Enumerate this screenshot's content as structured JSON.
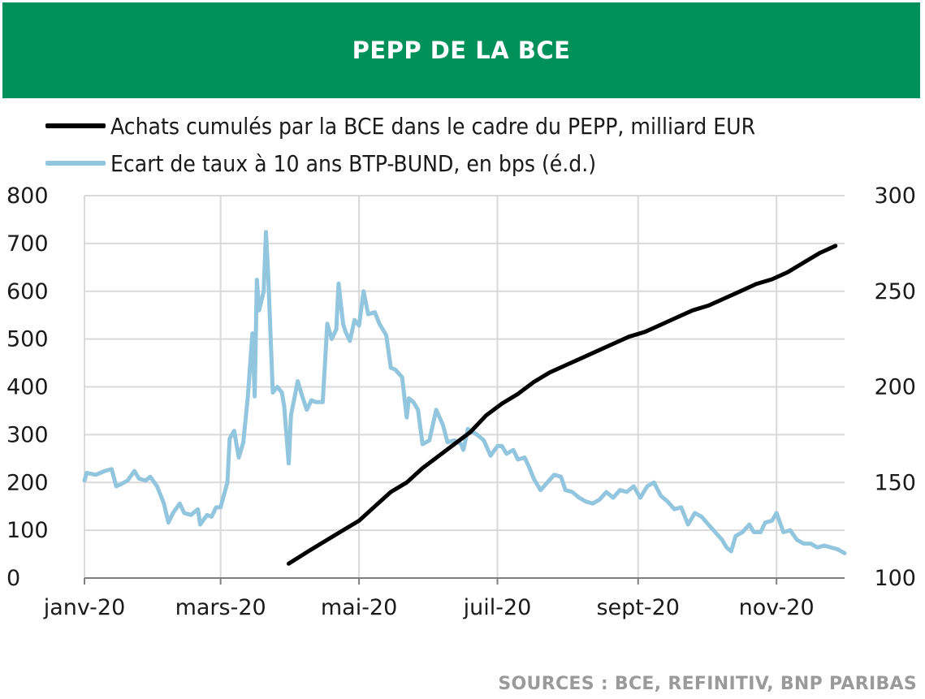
{
  "header": {
    "title": "PEPP DE LA BCE"
  },
  "source": "SOURCES : BCE, REFINITIV, BNP PARIBAS",
  "colors": {
    "header_bg": "#00915a",
    "series1": "#000000",
    "series2": "#92c5de",
    "grid": "#d9d9d9"
  },
  "chart_data": {
    "type": "line",
    "legend_position": "top-left",
    "grid": true,
    "x_range": [
      "2020-01-01",
      "2020-12-01"
    ],
    "x_ticks": [
      {
        "date": "2020-01-01",
        "label": "janv-20"
      },
      {
        "date": "2020-03-01",
        "label": "mars-20"
      },
      {
        "date": "2020-05-01",
        "label": "mai-20"
      },
      {
        "date": "2020-07-01",
        "label": "juil-20"
      },
      {
        "date": "2020-09-01",
        "label": "sept-20"
      },
      {
        "date": "2020-11-01",
        "label": "nov-20"
      }
    ],
    "y_left": {
      "range": [
        0,
        800
      ],
      "ticks": [
        "0",
        "100",
        "200",
        "300",
        "400",
        "500",
        "600",
        "700",
        "800"
      ]
    },
    "y_right": {
      "range": [
        100,
        300
      ],
      "ticks": [
        "100",
        "150",
        "200",
        "250",
        "300"
      ]
    },
    "series": [
      {
        "name": "Achats cumulés par la BCE dans le cadre du PEPP, milliard EUR",
        "axis": "left",
        "color": "#000000",
        "points": [
          [
            "2020-03-31",
            30
          ],
          [
            "2020-04-10",
            60
          ],
          [
            "2020-04-17",
            80
          ],
          [
            "2020-04-24",
            100
          ],
          [
            "2020-05-01",
            120
          ],
          [
            "2020-05-08",
            150
          ],
          [
            "2020-05-15",
            180
          ],
          [
            "2020-05-22",
            200
          ],
          [
            "2020-05-29",
            230
          ],
          [
            "2020-06-05",
            255
          ],
          [
            "2020-06-12",
            280
          ],
          [
            "2020-06-19",
            305
          ],
          [
            "2020-06-26",
            340
          ],
          [
            "2020-07-03",
            365
          ],
          [
            "2020-07-10",
            385
          ],
          [
            "2020-07-17",
            410
          ],
          [
            "2020-07-24",
            430
          ],
          [
            "2020-07-31",
            445
          ],
          [
            "2020-08-07",
            460
          ],
          [
            "2020-08-14",
            475
          ],
          [
            "2020-08-21",
            490
          ],
          [
            "2020-08-28",
            505
          ],
          [
            "2020-09-04",
            515
          ],
          [
            "2020-09-11",
            530
          ],
          [
            "2020-09-18",
            545
          ],
          [
            "2020-09-25",
            560
          ],
          [
            "2020-10-02",
            570
          ],
          [
            "2020-10-09",
            585
          ],
          [
            "2020-10-16",
            600
          ],
          [
            "2020-10-23",
            615
          ],
          [
            "2020-10-30",
            625
          ],
          [
            "2020-11-06",
            640
          ],
          [
            "2020-11-13",
            660
          ],
          [
            "2020-11-20",
            680
          ],
          [
            "2020-11-27",
            695
          ]
        ]
      },
      {
        "name": "Ecart de taux à 10 ans BTP-BUND, en bps (é.d.)",
        "axis": "right",
        "color": "#92c5de",
        "points": [
          [
            "2020-01-01",
            151
          ],
          [
            "2020-01-02",
            155
          ],
          [
            "2020-01-06",
            154
          ],
          [
            "2020-01-08",
            155
          ],
          [
            "2020-01-10",
            156
          ],
          [
            "2020-01-13",
            157
          ],
          [
            "2020-01-15",
            148
          ],
          [
            "2020-01-17",
            149
          ],
          [
            "2020-01-20",
            151
          ],
          [
            "2020-01-23",
            156
          ],
          [
            "2020-01-25",
            152
          ],
          [
            "2020-01-28",
            151
          ],
          [
            "2020-01-30",
            153
          ],
          [
            "2020-02-02",
            148
          ],
          [
            "2020-02-05",
            139
          ],
          [
            "2020-02-07",
            129
          ],
          [
            "2020-02-09",
            134
          ],
          [
            "2020-02-12",
            139
          ],
          [
            "2020-02-14",
            134
          ],
          [
            "2020-02-17",
            133
          ],
          [
            "2020-02-20",
            136
          ],
          [
            "2020-02-21",
            128
          ],
          [
            "2020-02-24",
            133
          ],
          [
            "2020-02-26",
            132
          ],
          [
            "2020-02-28",
            137
          ],
          [
            "2020-03-01",
            137
          ],
          [
            "2020-03-04",
            150
          ],
          [
            "2020-03-05",
            173
          ],
          [
            "2020-03-07",
            177
          ],
          [
            "2020-03-09",
            163
          ],
          [
            "2020-03-11",
            171
          ],
          [
            "2020-03-13",
            195
          ],
          [
            "2020-03-15",
            228
          ],
          [
            "2020-03-16",
            195
          ],
          [
            "2020-03-17",
            256
          ],
          [
            "2020-03-18",
            240
          ],
          [
            "2020-03-20",
            250
          ],
          [
            "2020-03-21",
            281
          ],
          [
            "2020-03-22",
            258
          ],
          [
            "2020-03-24",
            197
          ],
          [
            "2020-03-26",
            200
          ],
          [
            "2020-03-28",
            197
          ],
          [
            "2020-03-29",
            190
          ],
          [
            "2020-03-31",
            160
          ],
          [
            "2020-04-01",
            185
          ],
          [
            "2020-04-04",
            203
          ],
          [
            "2020-04-06",
            195
          ],
          [
            "2020-04-08",
            188
          ],
          [
            "2020-04-10",
            193
          ],
          [
            "2020-04-12",
            192
          ],
          [
            "2020-04-15",
            192
          ],
          [
            "2020-04-17",
            233
          ],
          [
            "2020-04-19",
            225
          ],
          [
            "2020-04-21",
            230
          ],
          [
            "2020-04-22",
            254
          ],
          [
            "2020-04-24",
            233
          ],
          [
            "2020-04-25",
            229
          ],
          [
            "2020-04-27",
            224
          ],
          [
            "2020-04-29",
            235
          ],
          [
            "2020-05-01",
            232
          ],
          [
            "2020-05-03",
            250
          ],
          [
            "2020-05-05",
            238
          ],
          [
            "2020-05-08",
            239
          ],
          [
            "2020-05-10",
            233
          ],
          [
            "2020-05-13",
            227
          ],
          [
            "2020-05-15",
            210
          ],
          [
            "2020-05-17",
            209
          ],
          [
            "2020-05-20",
            205
          ],
          [
            "2020-05-22",
            184
          ],
          [
            "2020-05-23",
            194
          ],
          [
            "2020-05-25",
            192
          ],
          [
            "2020-05-27",
            188
          ],
          [
            "2020-05-29",
            170
          ],
          [
            "2020-06-01",
            172
          ],
          [
            "2020-06-04",
            188
          ],
          [
            "2020-06-07",
            180
          ],
          [
            "2020-06-09",
            171
          ],
          [
            "2020-06-12",
            172
          ],
          [
            "2020-06-15",
            170
          ],
          [
            "2020-06-16",
            167
          ],
          [
            "2020-06-18",
            178
          ],
          [
            "2020-06-22",
            175
          ],
          [
            "2020-06-25",
            172
          ],
          [
            "2020-06-28",
            164
          ],
          [
            "2020-07-01",
            169
          ],
          [
            "2020-07-03",
            169
          ],
          [
            "2020-07-05",
            165
          ],
          [
            "2020-07-08",
            167
          ],
          [
            "2020-07-10",
            162
          ],
          [
            "2020-07-13",
            163
          ],
          [
            "2020-07-15",
            158
          ],
          [
            "2020-07-17",
            152
          ],
          [
            "2020-07-20",
            146
          ],
          [
            "2020-07-23",
            150
          ],
          [
            "2020-07-26",
            154
          ],
          [
            "2020-07-29",
            153
          ],
          [
            "2020-07-31",
            146
          ],
          [
            "2020-08-03",
            145
          ],
          [
            "2020-08-06",
            142
          ],
          [
            "2020-08-09",
            140
          ],
          [
            "2020-08-12",
            139
          ],
          [
            "2020-08-15",
            141
          ],
          [
            "2020-08-18",
            145
          ],
          [
            "2020-08-21",
            142
          ],
          [
            "2020-08-24",
            146
          ],
          [
            "2020-08-27",
            145
          ],
          [
            "2020-08-30",
            148
          ],
          [
            "2020-09-02",
            142
          ],
          [
            "2020-09-05",
            148
          ],
          [
            "2020-09-08",
            150
          ],
          [
            "2020-09-11",
            143
          ],
          [
            "2020-09-14",
            140
          ],
          [
            "2020-09-17",
            136
          ],
          [
            "2020-09-20",
            137
          ],
          [
            "2020-09-23",
            128
          ],
          [
            "2020-09-26",
            134
          ],
          [
            "2020-09-29",
            132
          ],
          [
            "2020-10-02",
            128
          ],
          [
            "2020-10-05",
            124
          ],
          [
            "2020-10-08",
            120
          ],
          [
            "2020-10-10",
            116
          ],
          [
            "2020-10-12",
            114
          ],
          [
            "2020-10-14",
            122
          ],
          [
            "2020-10-17",
            124
          ],
          [
            "2020-10-20",
            128
          ],
          [
            "2020-10-22",
            124
          ],
          [
            "2020-10-25",
            124
          ],
          [
            "2020-10-27",
            129
          ],
          [
            "2020-10-30",
            130
          ],
          [
            "2020-11-01",
            134
          ],
          [
            "2020-11-04",
            124
          ],
          [
            "2020-11-07",
            125
          ],
          [
            "2020-11-10",
            120
          ],
          [
            "2020-11-13",
            118
          ],
          [
            "2020-11-16",
            118
          ],
          [
            "2020-11-19",
            116
          ],
          [
            "2020-11-22",
            117
          ],
          [
            "2020-11-25",
            116
          ],
          [
            "2020-11-28",
            115
          ],
          [
            "2020-12-01",
            113
          ]
        ]
      }
    ]
  }
}
